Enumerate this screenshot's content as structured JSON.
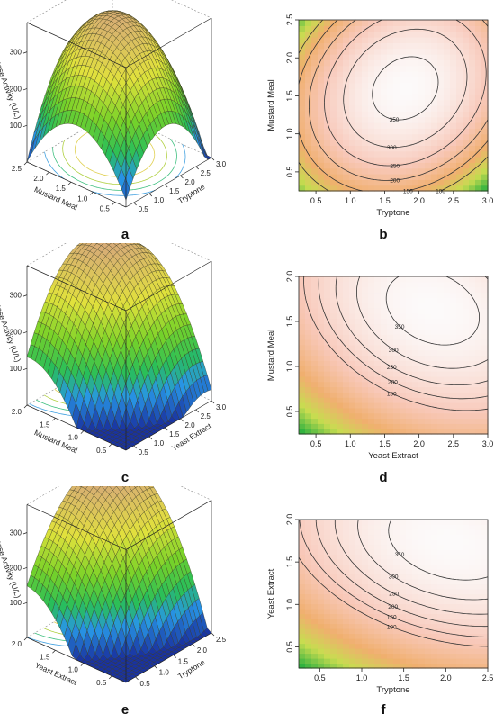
{
  "chart_data": [
    {
      "type": "surface",
      "panel_label": "a",
      "zlabel": "Phytase Activity (U/L)",
      "xlabel": "Mustard Meal",
      "ylabel": "Tryptone",
      "z_ticks": [
        "100",
        "200",
        "300"
      ],
      "x_ticks": [
        "2.5",
        "2.0",
        "1.5",
        "1.0",
        "0.5"
      ],
      "y_ticks": [
        "0.5",
        "1.0",
        "1.5",
        "2.0",
        "2.5",
        "3.0"
      ],
      "x_range": [
        0.25,
        2.5
      ],
      "y_range": [
        0.25,
        3.0
      ],
      "z_range": [
        0,
        380
      ],
      "surface": {
        "zmax": 370,
        "x_opt": 1.6,
        "y_opt": 1.8,
        "cx": 120,
        "cy": 90,
        "cxy": -40
      }
    },
    {
      "type": "contour",
      "panel_label": "b",
      "xlabel": "Tryptone",
      "ylabel": "Mustard Meal",
      "x_ticks": [
        "0.5",
        "1.0",
        "1.5",
        "2.0",
        "2.5",
        "3.0"
      ],
      "y_ticks": [
        "0.5",
        "1.0",
        "1.5",
        "2.0",
        "2.5"
      ],
      "x_range": [
        0.25,
        3.0
      ],
      "y_range": [
        0.25,
        2.5
      ],
      "contour_levels": [
        100,
        150,
        200,
        250,
        300,
        350
      ],
      "surface": {
        "zmax": 370,
        "x_opt": 1.8,
        "y_opt": 1.6,
        "cx": 90,
        "cy": 120,
        "cxy": -40
      }
    },
    {
      "type": "surface",
      "panel_label": "c",
      "zlabel": "Phytase Activity (U/L)",
      "xlabel": "Mustard Meal",
      "ylabel": "Yeast Extract",
      "z_ticks": [
        "100",
        "200",
        "300"
      ],
      "x_ticks": [
        "2.0",
        "1.5",
        "1.0",
        "0.5"
      ],
      "y_ticks": [
        "0.5",
        "1.0",
        "1.5",
        "2.0",
        "2.5",
        "3.0"
      ],
      "x_range": [
        0.25,
        2.0
      ],
      "y_range": [
        0.25,
        3.0
      ],
      "z_range": [
        0,
        380
      ],
      "surface": {
        "zmax": 380,
        "x_opt": 1.65,
        "y_opt": 2.2,
        "cx": 190,
        "cy": 70,
        "cxy": 60
      }
    },
    {
      "type": "contour",
      "panel_label": "d",
      "xlabel": "Yeast Extract",
      "ylabel": "Mustard Meal",
      "x_ticks": [
        "0.5",
        "1.0",
        "1.5",
        "2.0",
        "2.5",
        "3.0"
      ],
      "y_ticks": [
        "0.5",
        "1.0",
        "1.5",
        "2.0"
      ],
      "x_range": [
        0.25,
        3.0
      ],
      "y_range": [
        0.25,
        2.0
      ],
      "contour_levels": [
        150,
        200,
        250,
        300,
        350
      ],
      "surface": {
        "zmax": 380,
        "x_opt": 2.2,
        "y_opt": 1.65,
        "cx": 70,
        "cy": 190,
        "cxy": 60
      }
    },
    {
      "type": "surface",
      "panel_label": "e",
      "zlabel": "Phytase Activity (U/L)",
      "xlabel": "Yeast Extract",
      "ylabel": "Tryptone",
      "z_ticks": [
        "100",
        "200",
        "300"
      ],
      "x_ticks": [
        "2.0",
        "1.5",
        "1.0",
        "0.5"
      ],
      "y_ticks": [
        "0.5",
        "1.0",
        "1.5",
        "2.0",
        "2.5"
      ],
      "x_range": [
        0.25,
        2.0
      ],
      "y_range": [
        0.25,
        2.5
      ],
      "z_range": [
        0,
        380
      ],
      "surface": {
        "zmax": 390,
        "x_opt": 1.75,
        "y_opt": 2.05,
        "cx": 200,
        "cy": 80,
        "cxy": 65
      }
    },
    {
      "type": "contour",
      "panel_label": "f",
      "xlabel": "Tryptone",
      "ylabel": "Yeast Extract",
      "x_ticks": [
        "0.5",
        "1.0",
        "1.5",
        "2.0",
        "2.5"
      ],
      "y_ticks": [
        "0.5",
        "1.0",
        "1.5",
        "2.0"
      ],
      "x_range": [
        0.25,
        2.5
      ],
      "y_range": [
        0.25,
        2.0
      ],
      "contour_levels": [
        100,
        150,
        200,
        250,
        300,
        350
      ],
      "surface": {
        "zmax": 390,
        "x_opt": 2.05,
        "y_opt": 1.75,
        "cx": 80,
        "cy": 200,
        "cxy": 65
      }
    }
  ]
}
